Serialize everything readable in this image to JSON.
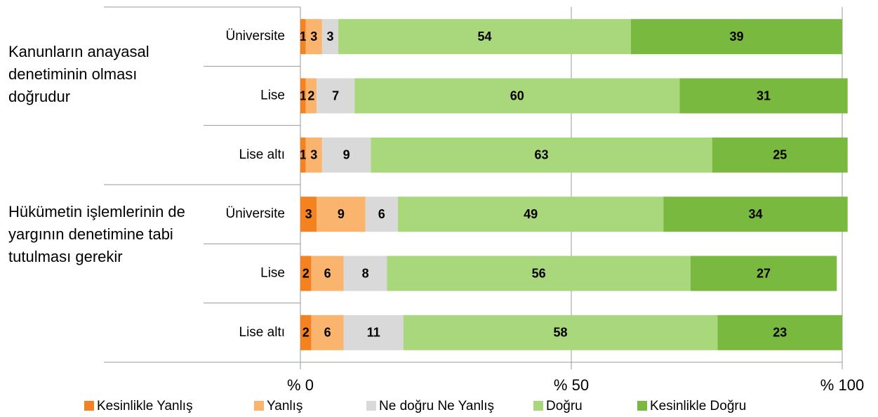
{
  "chart_data": {
    "type": "bar",
    "orientation": "horizontal",
    "stacked": true,
    "groups": [
      "Kanunların anayasal denetiminin olması doğrudur",
      "Hükümetin işlemlerinin de yargının denetimine tabi tutulması gerekir"
    ],
    "categories": [
      "Üniversite",
      "Lise",
      "Lise altı",
      "Üniversite",
      "Lise",
      "Lise altı"
    ],
    "series": [
      {
        "name": "Kesinlikle Yanlış",
        "color": "#f58220",
        "values": [
          1,
          1,
          1,
          3,
          2,
          2
        ]
      },
      {
        "name": "Yanlış",
        "color": "#fab46e",
        "values": [
          3,
          2,
          3,
          9,
          6,
          6
        ]
      },
      {
        "name": "Ne doğru Ne Yanlış",
        "color": "#d9d9d9",
        "values": [
          3,
          7,
          9,
          6,
          8,
          11
        ]
      },
      {
        "name": "Doğru",
        "color": "#a9d77b",
        "values": [
          54,
          60,
          63,
          49,
          56,
          58
        ]
      },
      {
        "name": "Kesinlikle Doğru",
        "color": "#7ab93f",
        "values": [
          39,
          31,
          25,
          34,
          27,
          23
        ]
      }
    ],
    "xlim": [
      0,
      100
    ],
    "xticks": [
      {
        "value": 0,
        "label": "% 0"
      },
      {
        "value": 50,
        "label": "% 50"
      },
      {
        "value": 100,
        "label": "% 100"
      }
    ],
    "grid": true,
    "legend": "bottom"
  }
}
